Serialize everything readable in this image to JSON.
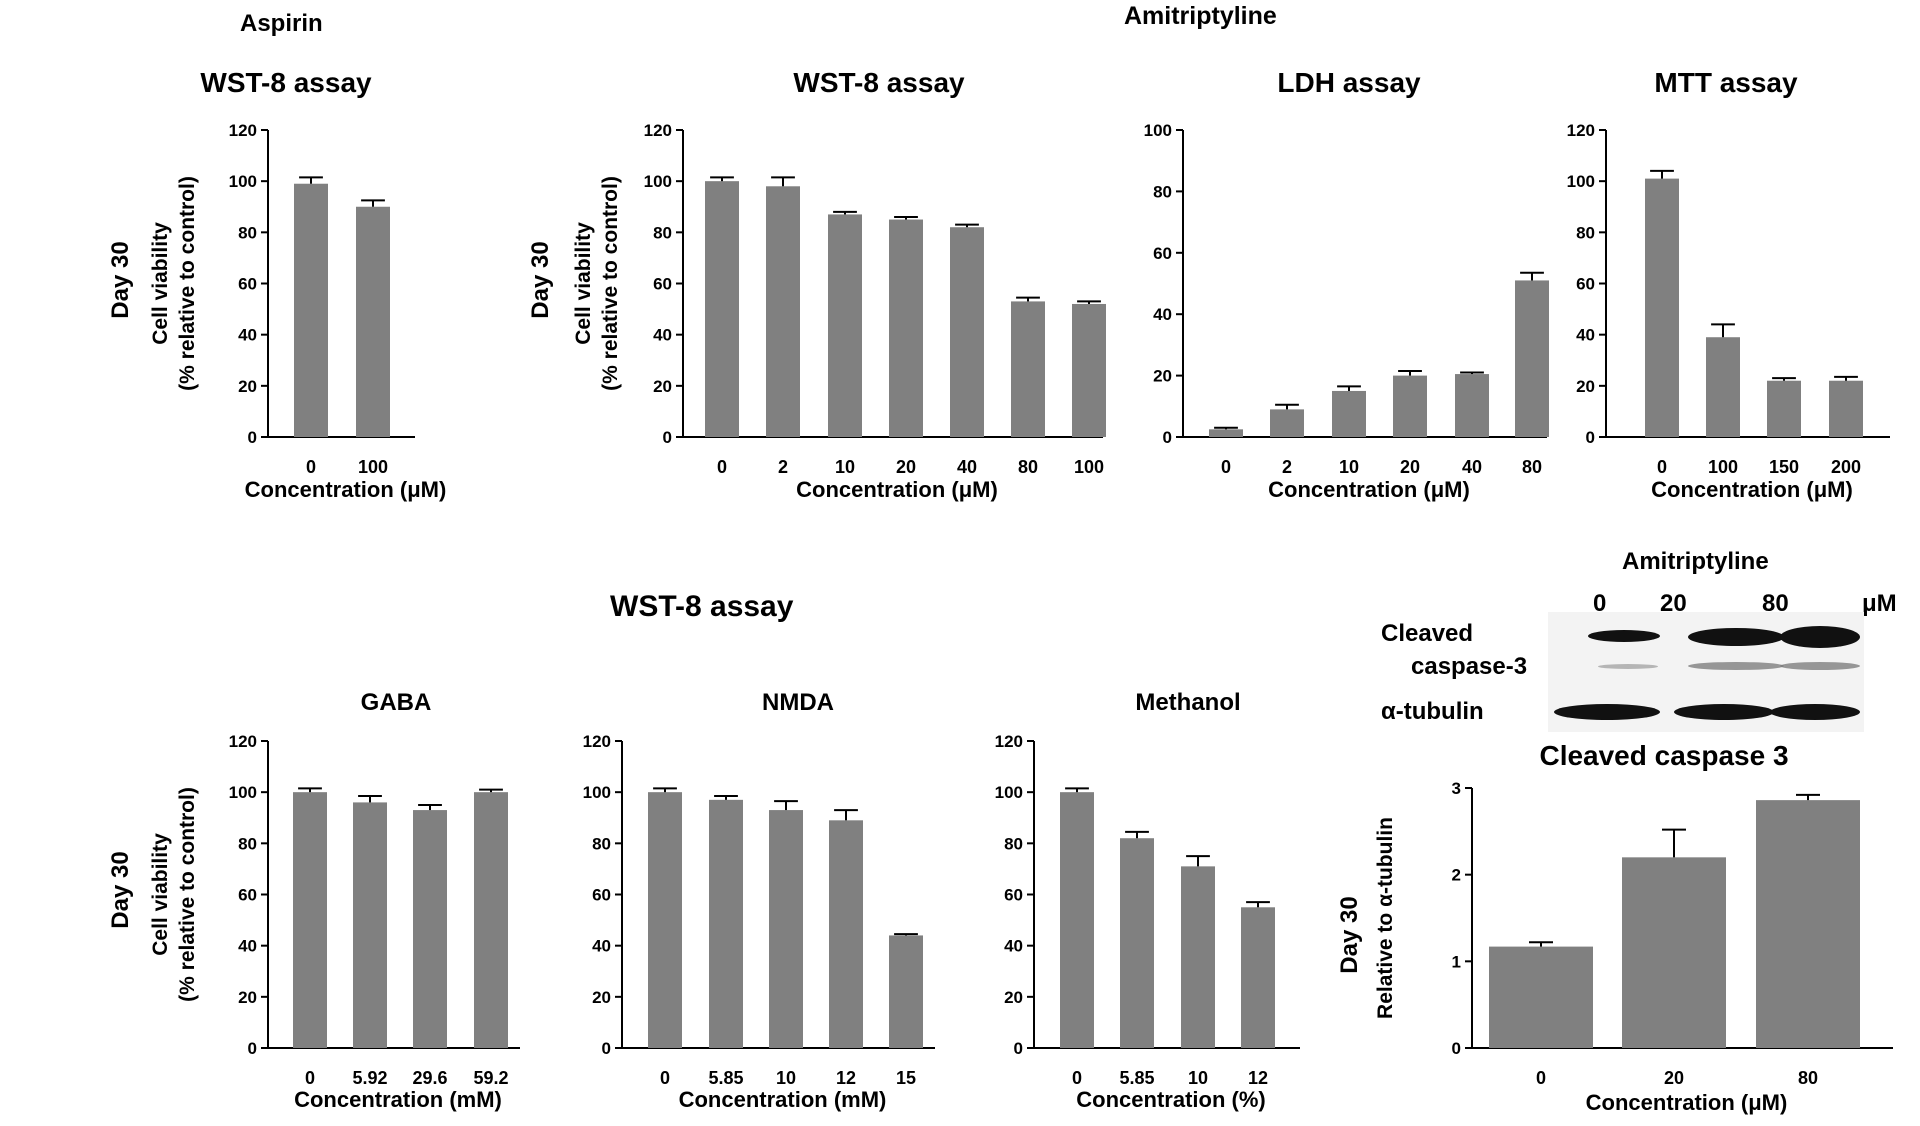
{
  "headers": {
    "aspirin": "Aspirin",
    "amitriptyline": "Amitriptyline",
    "wst8_group": "WST-8 assay"
  },
  "western_blot": {
    "drug": "Amitriptyline",
    "concentrations": [
      "0",
      "20",
      "80"
    ],
    "unit": "μM",
    "row_labels": [
      "Cleaved",
      "caspase-3",
      "α-tubulin"
    ]
  },
  "chart_data": [
    {
      "id": "aspirin-wst8",
      "type": "bar",
      "title": "WST-8 assay",
      "day_label": "Day 30",
      "ylabel": [
        "Cell viability",
        "(% relative to control)"
      ],
      "xlabel": "Concentration (μM)",
      "categories": [
        "0",
        "100"
      ],
      "values": [
        99,
        90
      ],
      "errors": [
        2.5,
        2.5
      ],
      "ylim": [
        0,
        120
      ],
      "yticks": [
        0,
        20,
        40,
        60,
        80,
        100,
        120
      ],
      "grid": false
    },
    {
      "id": "amitriptyline-wst8",
      "type": "bar",
      "title": "WST-8 assay",
      "day_label": "Day 30",
      "ylabel": [
        "Cell viability",
        "(% relative to control)"
      ],
      "xlabel": "Concentration (μM)",
      "categories": [
        "0",
        "2",
        "10",
        "20",
        "40",
        "80",
        "100"
      ],
      "values": [
        100,
        98,
        87,
        85,
        82,
        53,
        52
      ],
      "errors": [
        1.5,
        3.5,
        1,
        1,
        1,
        1.5,
        1
      ],
      "ylim": [
        0,
        120
      ],
      "yticks": [
        0,
        20,
        40,
        60,
        80,
        100,
        120
      ],
      "grid": false
    },
    {
      "id": "amitriptyline-ldh",
      "type": "bar",
      "title": "LDH assay",
      "xlabel": "Concentration (μM)",
      "categories": [
        "0",
        "2",
        "10",
        "20",
        "40",
        "80"
      ],
      "values": [
        2.5,
        9,
        15,
        20,
        20.5,
        51
      ],
      "errors": [
        0.5,
        1.5,
        1.5,
        1.5,
        0.5,
        2.5
      ],
      "ylim": [
        0,
        100
      ],
      "yticks": [
        0,
        20,
        40,
        60,
        80,
        100
      ],
      "grid": false
    },
    {
      "id": "amitriptyline-mtt",
      "type": "bar",
      "title": "MTT assay",
      "xlabel": "Concentration (μM)",
      "categories": [
        "0",
        "100",
        "150",
        "200"
      ],
      "values": [
        101,
        39,
        22,
        22
      ],
      "errors": [
        3,
        5,
        1,
        1.5
      ],
      "ylim": [
        0,
        120
      ],
      "yticks": [
        0,
        20,
        40,
        60,
        80,
        100,
        120
      ],
      "grid": false
    },
    {
      "id": "gaba-wst8",
      "type": "bar",
      "title": "GABA",
      "day_label": "Day 30",
      "ylabel": [
        "Cell viability",
        "(% relative to control)"
      ],
      "xlabel": "Concentration (mM)",
      "categories": [
        "0",
        "5.92",
        "29.6",
        "59.2"
      ],
      "values": [
        100,
        96,
        93,
        100
      ],
      "errors": [
        1.5,
        2.5,
        2,
        1
      ],
      "ylim": [
        0,
        120
      ],
      "yticks": [
        0,
        20,
        40,
        60,
        80,
        100,
        120
      ],
      "grid": false
    },
    {
      "id": "nmda-wst8",
      "type": "bar",
      "title": "NMDA",
      "xlabel": "Concentration (mM)",
      "categories": [
        "0",
        "5.85",
        "10",
        "12",
        "15"
      ],
      "values": [
        100,
        97,
        93,
        89,
        44
      ],
      "errors": [
        1.5,
        1.5,
        3.5,
        4,
        0.5
      ],
      "ylim": [
        0,
        120
      ],
      "yticks": [
        0,
        20,
        40,
        60,
        80,
        100,
        120
      ],
      "grid": false
    },
    {
      "id": "methanol-wst8",
      "type": "bar",
      "title": "Methanol",
      "xlabel": "Concentration (%)",
      "categories": [
        "0",
        "5.85",
        "10",
        "12"
      ],
      "values": [
        100,
        82,
        71,
        55
      ],
      "errors": [
        1.5,
        2.5,
        4,
        2
      ],
      "ylim": [
        0,
        120
      ],
      "yticks": [
        0,
        20,
        40,
        60,
        80,
        100,
        120
      ],
      "grid": false
    },
    {
      "id": "cleaved-caspase3",
      "type": "bar",
      "title": "Cleaved caspase 3",
      "day_label": "Day 30",
      "ylabel": [
        "Relative to α-tubulin"
      ],
      "xlabel": "Concentration (μM)",
      "categories": [
        "0",
        "20",
        "80"
      ],
      "values": [
        1.17,
        2.2,
        2.86
      ],
      "errors": [
        0.05,
        0.32,
        0.06
      ],
      "ylim": [
        0,
        3
      ],
      "yticks": [
        0,
        1,
        2,
        3
      ],
      "grid": false
    }
  ]
}
